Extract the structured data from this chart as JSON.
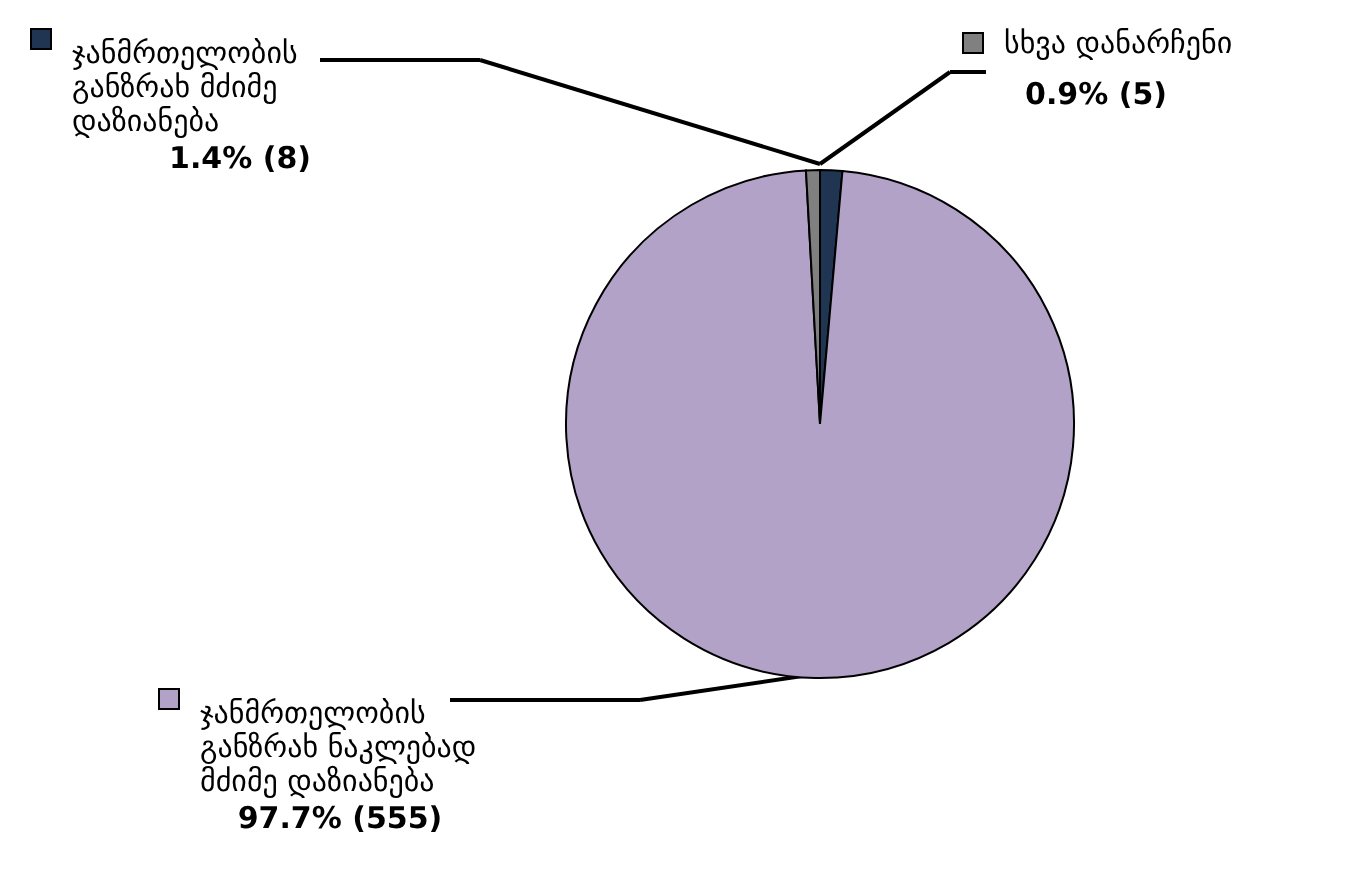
{
  "chart_data": {
    "type": "pie",
    "categories": [
      "ჯანმრთელობის განზრახ მძიმე დაზიანება",
      "ჯანმრთელობის განზრახ ნაკლებად მძიმე დაზიანება",
      "სხვა დანარჩენი"
    ],
    "values": [
      8,
      555,
      5
    ],
    "value_labels": [
      "1.4% (8)",
      "97.7% (555)",
      "0.9% (5)"
    ],
    "colors": [
      "#1f3552",
      "#b3a2c7",
      "#808080"
    ],
    "legend": "left"
  }
}
